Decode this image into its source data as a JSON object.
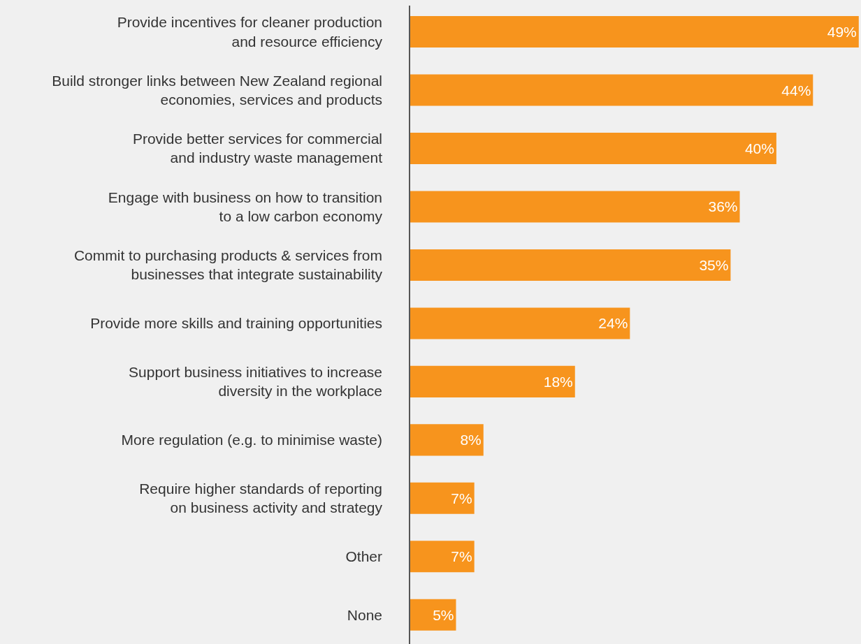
{
  "chart_data": {
    "type": "bar",
    "orientation": "horizontal",
    "categories": [
      "Provide incentives for cleaner production\nand resource efficiency",
      "Build stronger links between New Zealand regional\neconomies, services and products",
      "Provide better services for commercial\nand industry waste management",
      "Engage with business on how to transition\nto a low carbon economy",
      "Commit to purchasing products & services from\nbusinesses that integrate sustainability",
      "Provide more skills and training opportunities",
      "Support business initiatives to increase\ndiversity in the workplace",
      "More regulation (e.g. to minimise waste)",
      "Require higher standards of reporting\non business activity and strategy",
      "Other",
      "None"
    ],
    "values": [
      49,
      44,
      40,
      36,
      35,
      24,
      18,
      8,
      7,
      7,
      5
    ],
    "value_labels": [
      "49%",
      "44%",
      "40%",
      "36%",
      "35%",
      "24%",
      "18%",
      "8%",
      "7%",
      "7%",
      "5%"
    ],
    "color": "#f7941d",
    "legend": false
  }
}
